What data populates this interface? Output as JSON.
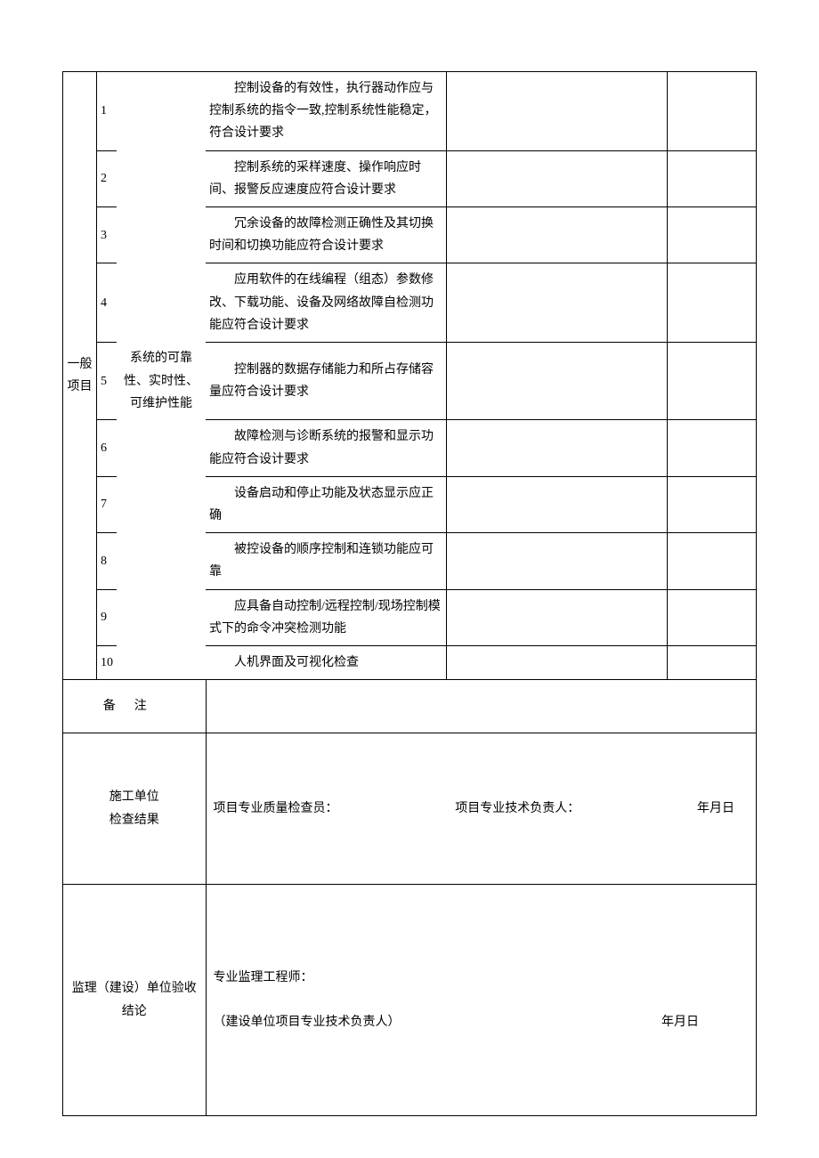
{
  "category_label": "一般项目",
  "group_label": "系统的可靠性、实时性、可维护性能",
  "items": [
    {
      "num": "1",
      "desc": "控制设备的有效性，执行器动作应与控制系统的指令一致,控制系统性能稳定，符合设计要求"
    },
    {
      "num": "2",
      "desc": "控制系统的采样速度、操作响应时间、报警反应速度应符合设计要求"
    },
    {
      "num": "3",
      "desc": "冗余设备的故障检测正确性及其切换时间和切换功能应符合设计要求"
    },
    {
      "num": "4",
      "desc": "应用软件的在线编程（组态）参数修改、下载功能、设备及网络故障自检测功能应符合设计要求"
    },
    {
      "num": "5",
      "desc": "控制器的数据存储能力和所占存储容量应符合设计要求"
    },
    {
      "num": "6",
      "desc": "故障检测与诊断系统的报警和显示功能应符合设计要求"
    },
    {
      "num": "7",
      "desc": "设备启动和停止功能及状态显示应正确"
    },
    {
      "num": "8",
      "desc": "被控设备的顺序控制和连锁功能应可靠"
    },
    {
      "num": "9",
      "desc": "应具备自动控制/远程控制/现场控制模式下的命令冲突检测功能"
    },
    {
      "num": "10",
      "desc": "人机界面及可视化检查"
    }
  ],
  "remarks_label": "备注",
  "inspection": {
    "label_line1": "施工单位",
    "label_line2": "检查结果",
    "quality_inspector": "项目专业质量检查员：",
    "tech_lead": "项目专业技术负责人：",
    "date": "年月日"
  },
  "acceptance": {
    "label_line1": "监理（建设）单位验收",
    "label_line2": "结论",
    "engineer": "专业监理工程师：",
    "owner_lead": "（建设单位项目专业技术负责人）",
    "date": "年月日"
  }
}
